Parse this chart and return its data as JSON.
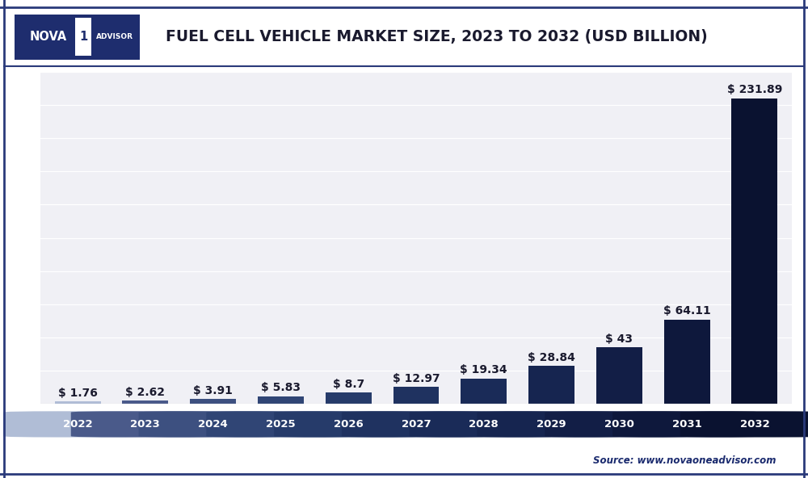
{
  "title": "FUEL CELL VEHICLE MARKET SIZE, 2023 TO 2032 (USD BILLION)",
  "categories": [
    "2022",
    "2023",
    "2024",
    "2025",
    "2026",
    "2027",
    "2028",
    "2029",
    "2030",
    "2031",
    "2032"
  ],
  "values": [
    1.76,
    2.62,
    3.91,
    5.83,
    8.7,
    12.97,
    19.34,
    28.84,
    43.0,
    64.11,
    231.89
  ],
  "bar_colors": [
    "#b0bdd6",
    "#4a5a8a",
    "#3d5080",
    "#304575",
    "#263b6a",
    "#1f3260",
    "#1a2b58",
    "#162550",
    "#121e46",
    "#0e183c",
    "#0a1230"
  ],
  "value_labels": [
    "$ 1.76",
    "$ 2.62",
    "$ 3.91",
    "$ 5.83",
    "$ 8.7",
    "$ 12.97",
    "$ 19.34",
    "$ 28.84",
    "$ 43",
    "$ 64.11",
    "$ 231.89"
  ],
  "ylim": [
    0,
    252
  ],
  "source_text": "Source: www.novaoneadvisor.com",
  "background_color": "#ffffff",
  "plot_bg_color": "#f0f0f5",
  "grid_color": "#ffffff",
  "title_color": "#1a1a2e",
  "bar_label_color": "#1a1a2e",
  "title_fontsize": 13.5,
  "label_fontsize": 10,
  "tick_fontsize": 9.5,
  "outer_border_color": "#2a3a7a",
  "separator_line_color": "#2a3a7a",
  "logo_bg_color": "#1e2d6e",
  "logo_text_color": "#ffffff",
  "logo_one_bg": "#ffffff",
  "logo_one_color": "#1e2d6e"
}
